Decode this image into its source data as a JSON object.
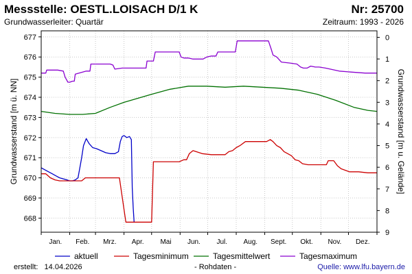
{
  "header": {
    "title": "Messstelle: OESTL.LOISACH D/1 K",
    "number": "Nr: 25700",
    "subtitle": "Grundwasserleiter: Quartär",
    "period": "Zeitraum: 1993 - 2026"
  },
  "footer": {
    "created_label": "erstellt:",
    "created_date": "14.04.2026",
    "note": "- Rohdaten -",
    "source": "Quelle: www.lfu.bayern.de"
  },
  "colors": {
    "aktuell": "#0000c8",
    "min": "#cc0000",
    "mittel": "#007000",
    "max": "#8a00d0",
    "grid": "#c8c8c8"
  },
  "chart_data": {
    "type": "line",
    "xlabel": "",
    "ylabel": "Grundwasserstand [m ü. NN]",
    "y2label": "Grundwasserstand [m u. Gelände]",
    "ylim": [
      667.3,
      677.3
    ],
    "y2lim": [
      -0.3,
      9.0
    ],
    "xlim": [
      0,
      365
    ],
    "yticks": [
      668,
      669,
      670,
      671,
      672,
      673,
      674,
      675,
      676,
      677
    ],
    "y2ticks": [
      0,
      1,
      2,
      3,
      4,
      5,
      6,
      7,
      8,
      9
    ],
    "month_ticks": [
      0,
      31,
      59,
      90,
      120,
      151,
      181,
      212,
      243,
      273,
      304,
      334,
      365
    ],
    "month_labels": [
      "Jan.",
      "Feb.",
      "Mrz.",
      "Apr.",
      "Mai",
      "Jun.",
      "Jul.",
      "Aug.",
      "Sept.",
      "Okt.",
      "Nov.",
      "Dez."
    ],
    "grid": true,
    "legend_position": "bottom",
    "series": [
      {
        "name": "aktuell",
        "key": "aktuell",
        "x": [
          0,
          4,
          8,
          12,
          16,
          20,
          24,
          28,
          31,
          34,
          37,
          40,
          42,
          44,
          46,
          49,
          52,
          56,
          60,
          65,
          70,
          75,
          80,
          84,
          86,
          88,
          90,
          93,
          96,
          98,
          99,
          100,
          101,
          101
        ],
        "y": [
          670.5,
          670.4,
          670.3,
          670.2,
          670.1,
          670.0,
          669.95,
          669.9,
          669.85,
          669.85,
          669.9,
          670.0,
          670.5,
          671.0,
          671.6,
          671.95,
          671.7,
          671.5,
          671.45,
          671.35,
          671.25,
          671.2,
          671.2,
          671.3,
          671.8,
          672.05,
          672.1,
          672.0,
          672.05,
          671.9,
          669.5,
          668.5,
          667.8,
          667.8
        ]
      },
      {
        "name": "Tagesminimum",
        "key": "min",
        "x": [
          0,
          5,
          10,
          15,
          20,
          25,
          31,
          40,
          44,
          48,
          53,
          59,
          70,
          78,
          85,
          92,
          96,
          100,
          105,
          115,
          120,
          122,
          130,
          140,
          150,
          155,
          158,
          161,
          165,
          175,
          185,
          200,
          204,
          208,
          212,
          216,
          222,
          230,
          245,
          249,
          252,
          256,
          260,
          264,
          268,
          272,
          276,
          280,
          284,
          290,
          300,
          310,
          312,
          318,
          322,
          326,
          335,
          345,
          355,
          365
        ],
        "y": [
          670.2,
          670.2,
          670.0,
          669.9,
          669.85,
          669.85,
          669.85,
          669.85,
          669.85,
          670.0,
          670.0,
          670.0,
          670.0,
          670.0,
          670.0,
          667.8,
          667.8,
          667.8,
          667.8,
          667.8,
          667.8,
          670.8,
          670.8,
          670.8,
          670.8,
          670.9,
          670.9,
          671.2,
          671.35,
          671.2,
          671.15,
          671.15,
          671.3,
          671.35,
          671.5,
          671.6,
          671.8,
          671.8,
          671.8,
          671.9,
          671.8,
          671.6,
          671.5,
          671.3,
          671.2,
          671.1,
          670.9,
          670.85,
          670.7,
          670.65,
          670.65,
          670.65,
          670.85,
          670.85,
          670.6,
          670.45,
          670.3,
          670.3,
          670.25,
          670.25
        ]
      },
      {
        "name": "Tagesmittelwert",
        "key": "mittel",
        "x": [
          0,
          15,
          31,
          45,
          59,
          75,
          90,
          105,
          120,
          140,
          160,
          180,
          200,
          220,
          240,
          260,
          280,
          300,
          320,
          340,
          355,
          365
        ],
        "y": [
          673.3,
          673.2,
          673.15,
          673.15,
          673.2,
          673.5,
          673.75,
          673.95,
          674.15,
          674.4,
          674.55,
          674.55,
          674.5,
          674.55,
          674.5,
          674.45,
          674.35,
          674.15,
          673.85,
          673.5,
          673.35,
          673.3
        ],
        "y_fill": 0
      },
      {
        "name": "Tagesmaximum",
        "key": "max",
        "x": [
          0,
          5,
          6,
          18,
          24,
          26,
          29,
          31,
          34,
          36,
          37,
          49,
          53,
          54,
          59,
          66,
          69,
          75,
          78,
          80,
          88,
          95,
          98,
          100,
          107,
          114,
          115,
          122,
          124,
          130,
          133,
          135,
          150,
          152,
          155,
          160,
          165,
          171,
          176,
          180,
          185,
          190,
          192,
          196,
          200,
          206,
          211,
          213,
          215,
          219,
          232,
          247,
          250,
          252,
          256,
          261,
          270,
          278,
          282,
          285,
          289,
          293,
          298,
          302,
          309,
          324,
          338,
          352,
          365
        ],
        "y": [
          675.2,
          675.2,
          675.35,
          675.35,
          675.3,
          675.0,
          674.75,
          674.75,
          674.8,
          674.8,
          675.15,
          675.3,
          675.3,
          675.65,
          675.65,
          675.65,
          675.65,
          675.65,
          675.6,
          675.4,
          675.45,
          675.45,
          675.45,
          675.45,
          675.45,
          675.45,
          675.8,
          675.8,
          676.25,
          676.25,
          676.25,
          676.25,
          676.25,
          676.0,
          675.95,
          675.95,
          675.9,
          675.9,
          675.9,
          676.0,
          676.05,
          676.05,
          676.25,
          676.25,
          676.25,
          676.25,
          676.25,
          676.8,
          676.8,
          676.8,
          676.8,
          676.8,
          676.4,
          676.1,
          676.0,
          675.75,
          675.7,
          675.65,
          675.5,
          675.45,
          675.45,
          675.55,
          675.5,
          675.5,
          675.45,
          675.3,
          675.25,
          675.2,
          675.2
        ]
      }
    ]
  }
}
